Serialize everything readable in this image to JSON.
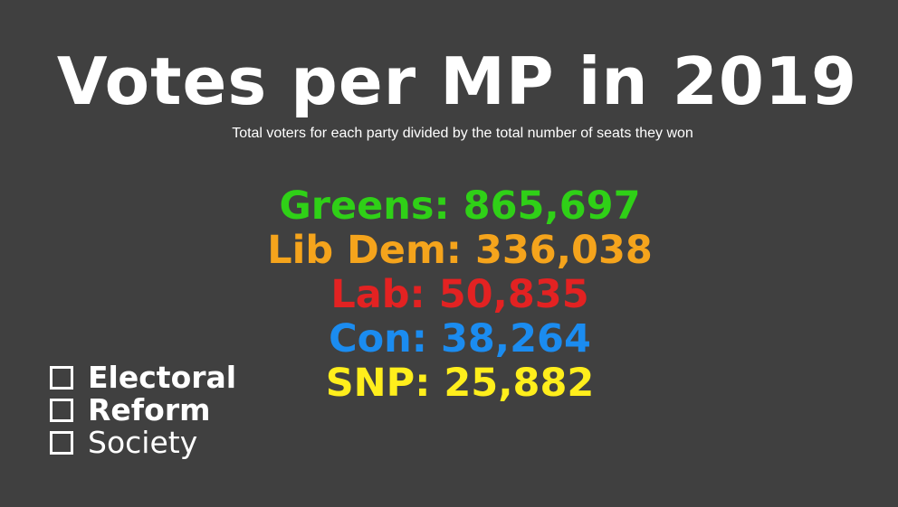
{
  "title": "Votes per MP in 2019",
  "subtitle": "Total voters for each party divided by the total number of seats they won",
  "colors": {
    "background": "#404040",
    "text": "#ffffff"
  },
  "results": [
    {
      "party": "Greens",
      "votes_per_mp": "865,697",
      "color": "#2fd017"
    },
    {
      "party": "Lib Dem",
      "votes_per_mp": "336,038",
      "color": "#f5a41c"
    },
    {
      "party": "Lab",
      "votes_per_mp": "50,835",
      "color": "#e32222"
    },
    {
      "party": "Con",
      "votes_per_mp": "38,264",
      "color": "#1b8cf0"
    },
    {
      "party": "SNP",
      "votes_per_mp": "25,882",
      "color": "#ffee1c"
    }
  ],
  "logo": {
    "lines": [
      {
        "text": "Electoral",
        "bold": true
      },
      {
        "text": "Reform",
        "bold": true
      },
      {
        "text": "Society",
        "bold": false
      }
    ]
  }
}
